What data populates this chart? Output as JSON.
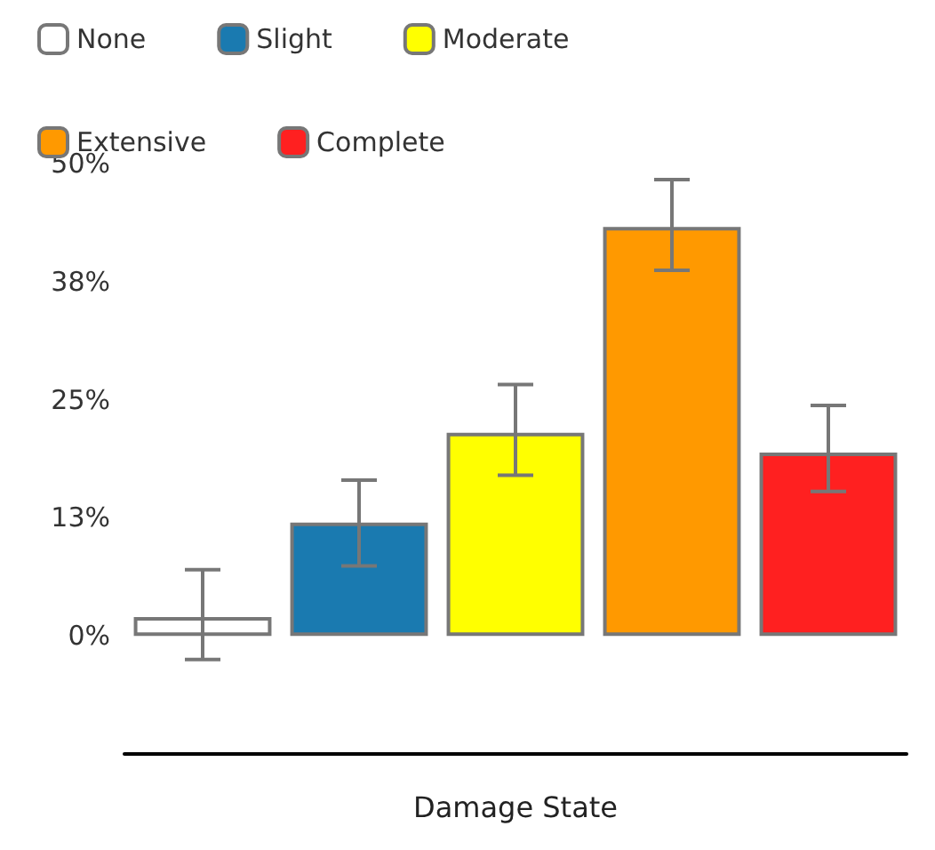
{
  "chart_data": {
    "type": "bar",
    "xlabel": "Damage State",
    "categories": [
      null,
      null,
      null,
      null,
      null
    ],
    "series": [
      {
        "name": "None",
        "color": "#ffffff",
        "values": [
          2,
          null,
          null,
          null,
          null
        ],
        "errors": [
          [
            -2.5,
            7
          ],
          null,
          null,
          null,
          null
        ]
      },
      {
        "name": "Slight",
        "color": "#1a7ab0",
        "values": [
          null,
          12,
          null,
          null,
          null
        ],
        "errors": [
          null,
          [
            7.4,
            16.5
          ],
          null,
          null,
          null
        ]
      },
      {
        "name": "Moderate",
        "color": "#ffff00",
        "values": [
          null,
          null,
          21.5,
          null,
          null
        ],
        "errors": [
          null,
          null,
          [
            17,
            26.6
          ],
          null,
          null
        ]
      },
      {
        "name": "Extensive",
        "color": "#ff9900",
        "values": [
          null,
          null,
          null,
          43.3,
          null
        ],
        "errors": [
          null,
          null,
          null,
          [
            38.7,
            48.3
          ],
          null
        ]
      },
      {
        "name": "Complete",
        "color": "#ff2020",
        "values": [
          null,
          null,
          null,
          null,
          19.4
        ],
        "errors": [
          null,
          null,
          null,
          null,
          [
            15.3,
            24.4
          ]
        ]
      }
    ],
    "ylim": [
      -12.5,
      50
    ],
    "yticks": [
      {
        "value": 0,
        "label": "0%"
      },
      {
        "value": 12.5,
        "label": "13%"
      },
      {
        "value": 25,
        "label": "25%"
      },
      {
        "value": 37.5,
        "label": "38%"
      },
      {
        "value": 50,
        "label": "50%"
      }
    ],
    "legend": "top left",
    "grid": false
  }
}
